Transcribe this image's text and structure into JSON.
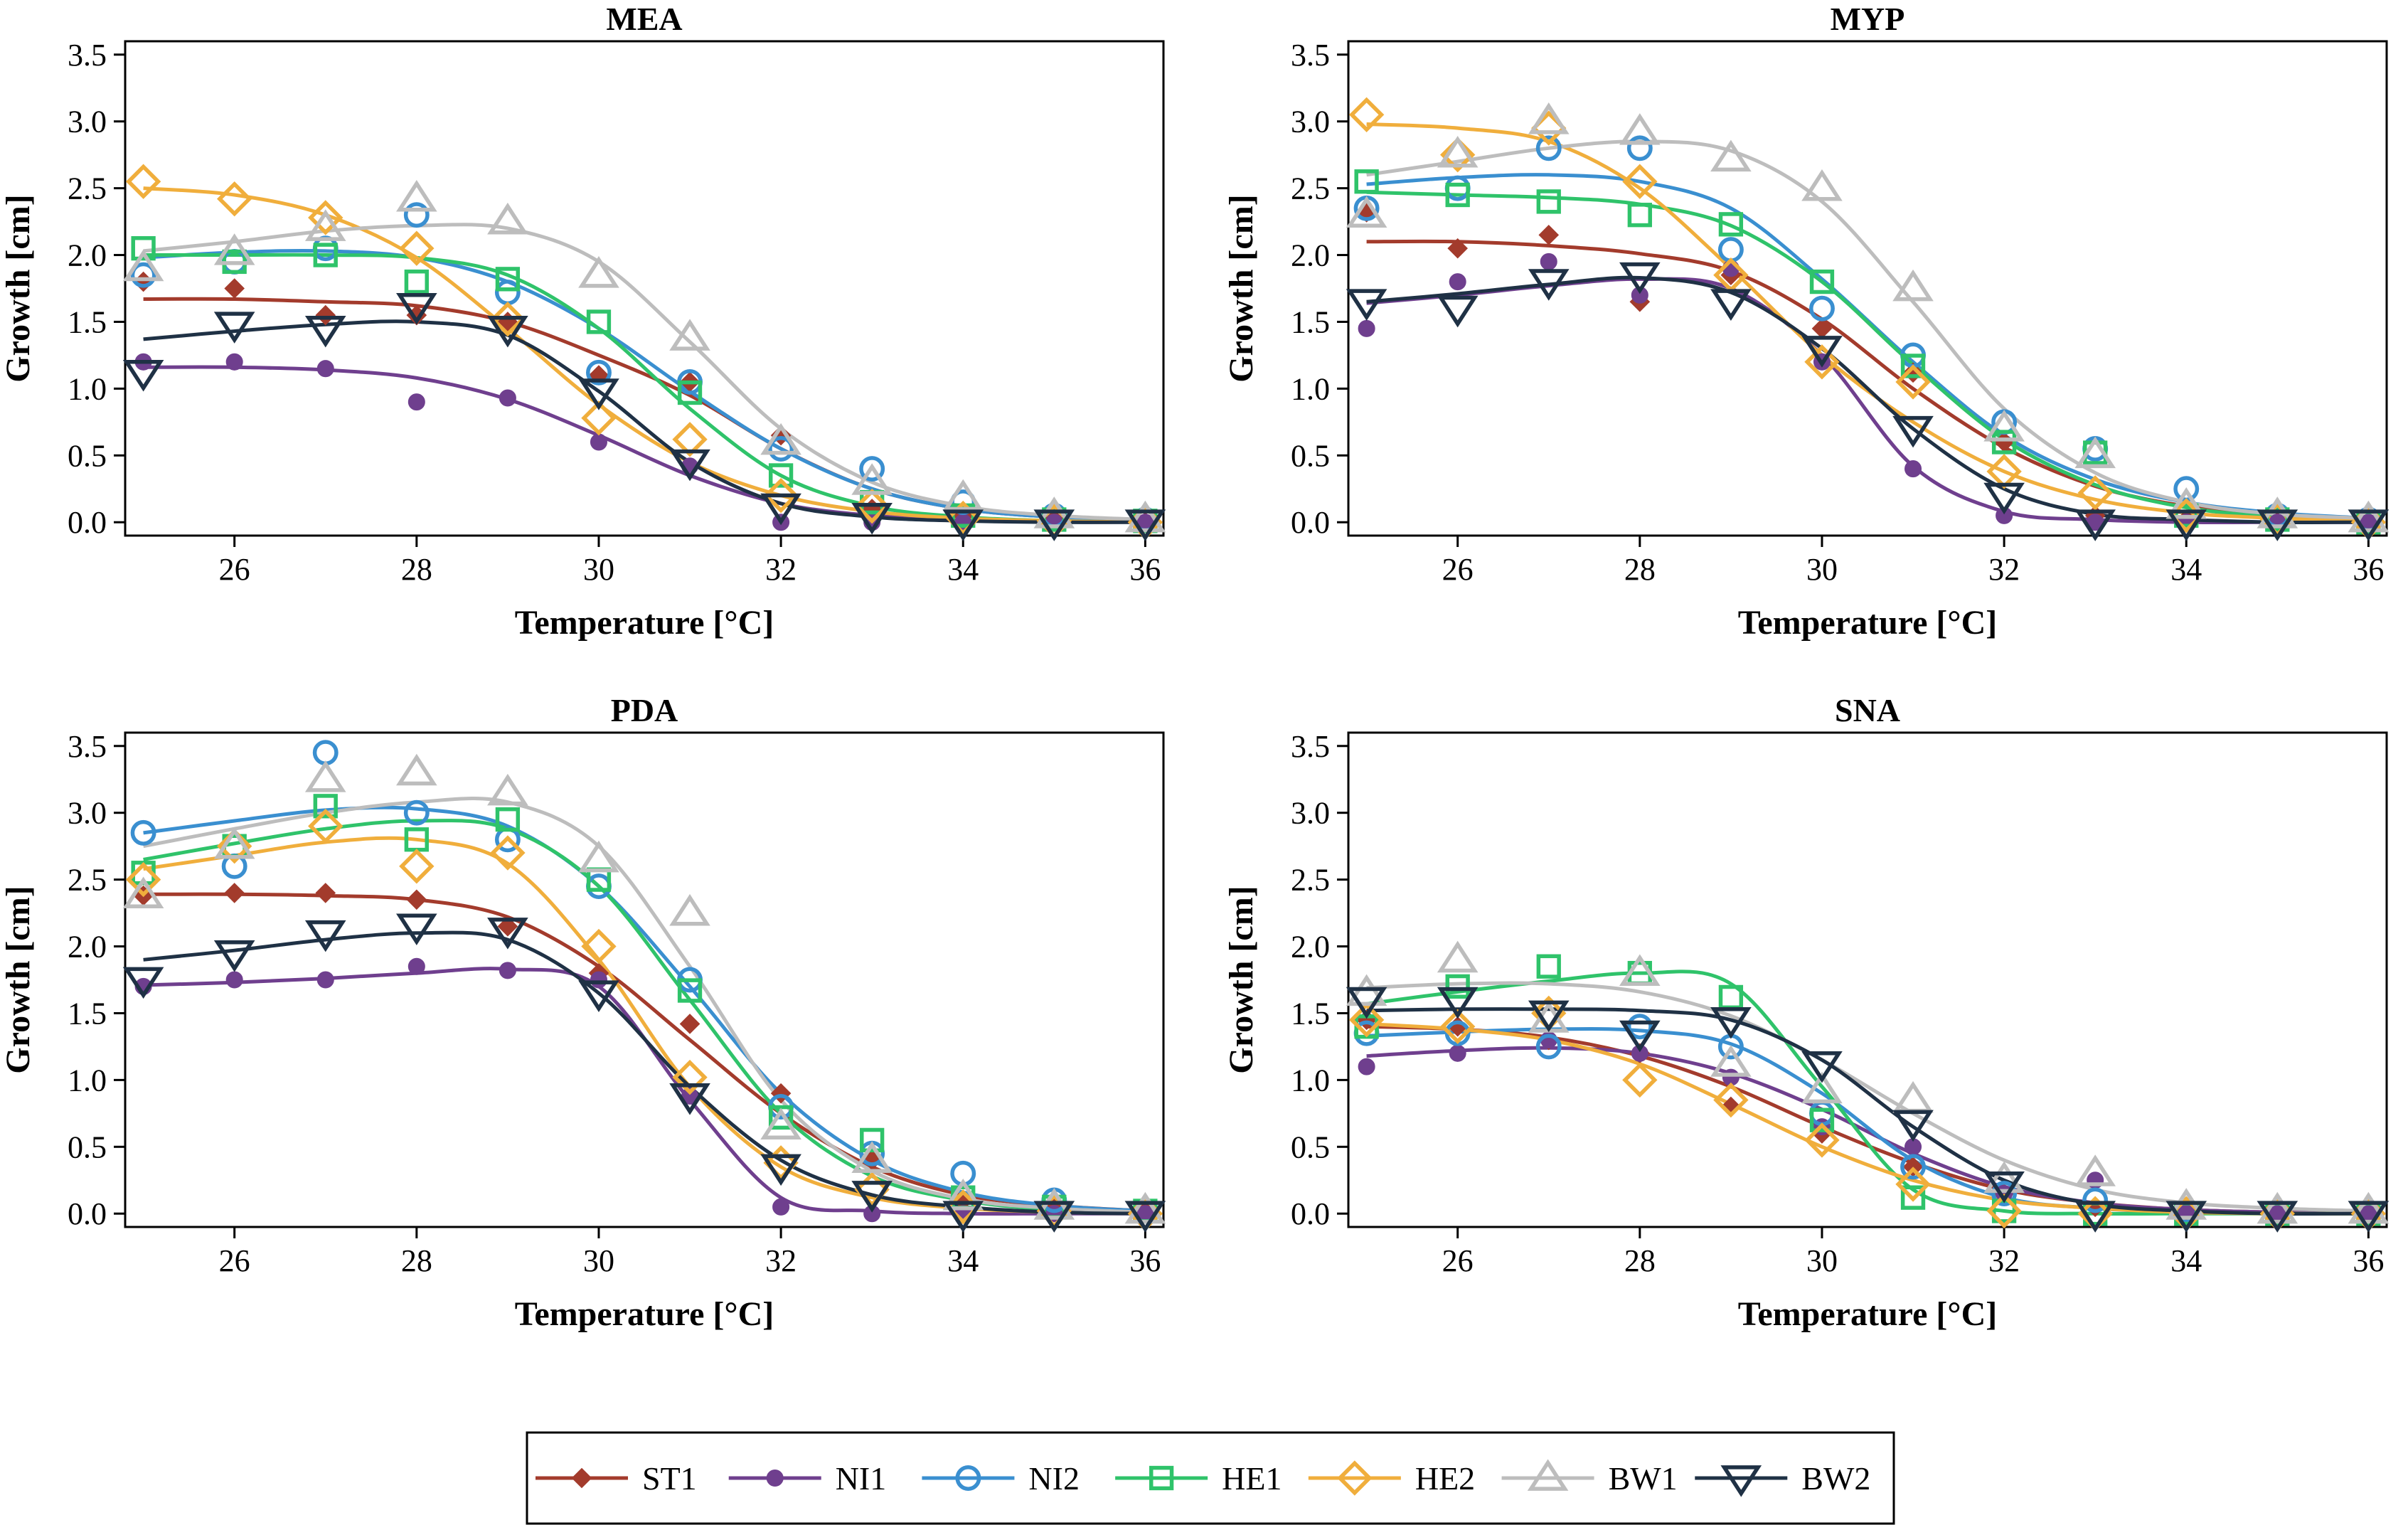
{
  "figure": {
    "legend_position": "bottom-center",
    "series_styles": [
      {
        "name": "ST1",
        "color": "#a33b2c",
        "marker": "diamond-filled"
      },
      {
        "name": "NI1",
        "color": "#6f3f8e",
        "marker": "circle-filled"
      },
      {
        "name": "NI2",
        "color": "#3a8fd0",
        "marker": "circle-open"
      },
      {
        "name": "HE1",
        "color": "#2fc36a",
        "marker": "square-open"
      },
      {
        "name": "HE2",
        "color": "#f0ae3c",
        "marker": "diamond-open"
      },
      {
        "name": "BW1",
        "color": "#bdbdbd",
        "marker": "triangle-up-open"
      },
      {
        "name": "BW2",
        "color": "#1f3145",
        "marker": "triangle-down-open"
      }
    ]
  },
  "chart_data": [
    {
      "type": "scatter",
      "title": "MEA",
      "xlabel": "Temperature [°C]",
      "ylabel": "Growth [cm]",
      "xlim": [
        24.8,
        36.2
      ],
      "ylim": [
        -0.1,
        3.6
      ],
      "xticks": [
        "26",
        "28",
        "30",
        "32",
        "34",
        "36"
      ],
      "yticks": [
        "0.0",
        "0.5",
        "1.0",
        "1.5",
        "2.0",
        "2.5",
        "3.0",
        "3.5"
      ],
      "x": [
        25,
        26,
        27,
        28,
        29,
        30,
        31,
        32,
        33,
        34,
        35,
        36
      ],
      "series": [
        {
          "name": "ST1",
          "values": [
            1.8,
            1.75,
            1.55,
            1.55,
            1.5,
            1.1,
            1.05,
            0.65,
            0.1,
            0.05,
            0.02,
            0.0
          ],
          "fit": [
            1.67,
            1.67,
            1.65,
            1.62,
            1.5,
            1.25,
            0.95,
            0.55,
            0.25,
            0.1,
            0.04,
            0.02
          ]
        },
        {
          "name": "NI1",
          "values": [
            1.2,
            1.2,
            1.15,
            0.9,
            0.93,
            0.6,
            0.42,
            0.0,
            0.0,
            0.0,
            0.0,
            0.0
          ],
          "fit": [
            1.16,
            1.16,
            1.14,
            1.08,
            0.92,
            0.65,
            0.35,
            0.14,
            0.05,
            0.02,
            0.01,
            0.0
          ]
        },
        {
          "name": "NI2",
          "values": [
            1.85,
            1.95,
            2.05,
            2.3,
            1.72,
            1.12,
            1.05,
            0.55,
            0.4,
            0.15,
            0.05,
            0.02
          ],
          "fit": [
            1.98,
            2.02,
            2.03,
            1.98,
            1.8,
            1.45,
            0.98,
            0.55,
            0.25,
            0.1,
            0.04,
            0.02
          ]
        },
        {
          "name": "HE1",
          "values": [
            2.05,
            1.95,
            2.0,
            1.8,
            1.82,
            1.5,
            0.97,
            0.35,
            0.15,
            0.05,
            0.02,
            0.01
          ],
          "fit": [
            2.0,
            2.0,
            2.0,
            1.98,
            1.85,
            1.45,
            0.85,
            0.35,
            0.12,
            0.04,
            0.01,
            0.0
          ]
        },
        {
          "name": "HE2",
          "values": [
            2.55,
            2.42,
            2.28,
            2.05,
            1.52,
            0.78,
            0.62,
            0.2,
            0.12,
            0.03,
            0.01,
            0.0
          ],
          "fit": [
            2.5,
            2.45,
            2.3,
            1.98,
            1.45,
            0.88,
            0.45,
            0.2,
            0.08,
            0.03,
            0.01,
            0.0
          ]
        },
        {
          "name": "BW1",
          "values": [
            1.9,
            2.02,
            2.2,
            2.42,
            2.25,
            1.85,
            1.38,
            0.6,
            0.3,
            0.18,
            0.05,
            0.02
          ],
          "fit": [
            2.03,
            2.1,
            2.18,
            2.22,
            2.2,
            1.95,
            1.35,
            0.7,
            0.3,
            0.12,
            0.05,
            0.02
          ]
        },
        {
          "name": "BW2",
          "values": [
            1.12,
            1.48,
            1.45,
            1.62,
            1.45,
            0.98,
            0.45,
            0.12,
            0.05,
            0.0,
            0.0,
            0.0
          ],
          "fit": [
            1.37,
            1.43,
            1.48,
            1.5,
            1.4,
            0.98,
            0.45,
            0.14,
            0.04,
            0.01,
            0.0,
            0.0
          ]
        }
      ]
    },
    {
      "type": "scatter",
      "title": "MYP",
      "xlabel": "Temperature [°C]",
      "ylabel": "Growth [cm]",
      "xlim": [
        24.8,
        36.2
      ],
      "ylim": [
        -0.1,
        3.6
      ],
      "xticks": [
        "26",
        "28",
        "30",
        "32",
        "34",
        "36"
      ],
      "yticks": [
        "0.0",
        "0.5",
        "1.0",
        "1.5",
        "2.0",
        "2.5",
        "3.0",
        "3.5"
      ],
      "x": [
        25,
        26,
        27,
        28,
        29,
        30,
        31,
        32,
        33,
        34,
        35,
        36
      ],
      "series": [
        {
          "name": "ST1",
          "values": [
            2.32,
            2.05,
            2.15,
            1.65,
            1.85,
            1.45,
            1.12,
            0.6,
            0.05,
            0.02,
            0.0,
            0.0
          ],
          "fit": [
            2.1,
            2.1,
            2.07,
            2.01,
            1.88,
            1.52,
            1.0,
            0.56,
            0.27,
            0.12,
            0.05,
            0.02
          ]
        },
        {
          "name": "NI1",
          "values": [
            1.45,
            1.8,
            1.95,
            1.7,
            1.9,
            1.2,
            0.4,
            0.05,
            0.0,
            0.0,
            0.0,
            0.0
          ],
          "fit": [
            1.64,
            1.7,
            1.77,
            1.82,
            1.75,
            1.25,
            0.42,
            0.08,
            0.02,
            0.0,
            0.0,
            0.0
          ]
        },
        {
          "name": "NI2",
          "values": [
            2.35,
            2.5,
            2.8,
            2.8,
            2.04,
            1.6,
            1.25,
            0.75,
            0.55,
            0.25,
            0.05,
            0.02
          ],
          "fit": [
            2.53,
            2.58,
            2.6,
            2.55,
            2.35,
            1.82,
            1.2,
            0.65,
            0.32,
            0.15,
            0.07,
            0.03
          ]
        },
        {
          "name": "HE1",
          "values": [
            2.55,
            2.45,
            2.4,
            2.3,
            2.23,
            1.8,
            1.17,
            0.6,
            0.52,
            0.05,
            0.02,
            0.0
          ],
          "fit": [
            2.47,
            2.45,
            2.43,
            2.38,
            2.22,
            1.8,
            1.18,
            0.62,
            0.28,
            0.11,
            0.04,
            0.02
          ]
        },
        {
          "name": "HE2",
          "values": [
            3.05,
            2.75,
            2.95,
            2.55,
            1.85,
            1.2,
            1.05,
            0.38,
            0.22,
            0.05,
            0.02,
            0.0
          ],
          "fit": [
            2.98,
            2.95,
            2.85,
            2.5,
            1.9,
            1.25,
            0.75,
            0.38,
            0.17,
            0.07,
            0.03,
            0.01
          ]
        },
        {
          "name": "BW1",
          "values": [
            2.3,
            2.75,
            3.0,
            2.92,
            2.72,
            2.5,
            1.75,
            0.7,
            0.5,
            0.12,
            0.05,
            0.02
          ],
          "fit": [
            2.6,
            2.7,
            2.8,
            2.85,
            2.78,
            2.4,
            1.65,
            0.85,
            0.37,
            0.15,
            0.06,
            0.03
          ]
        },
        {
          "name": "BW2",
          "values": [
            1.65,
            1.6,
            1.8,
            1.85,
            1.65,
            1.3,
            0.7,
            0.2,
            0.0,
            0.0,
            0.0,
            0.0
          ],
          "fit": [
            1.65,
            1.71,
            1.78,
            1.83,
            1.72,
            1.3,
            0.7,
            0.25,
            0.06,
            0.02,
            0.0,
            0.0
          ]
        }
      ]
    },
    {
      "type": "scatter",
      "title": "PDA",
      "xlabel": "Temperature [°C]",
      "ylabel": "Growth [cm]",
      "xlim": [
        24.8,
        36.2
      ],
      "ylim": [
        -0.1,
        3.6
      ],
      "xticks": [
        "26",
        "28",
        "30",
        "32",
        "34",
        "36"
      ],
      "yticks": [
        "0.0",
        "0.5",
        "1.0",
        "1.5",
        "2.0",
        "2.5",
        "3.0",
        "3.5"
      ],
      "x": [
        25,
        26,
        27,
        28,
        29,
        30,
        31,
        32,
        33,
        34,
        35,
        36
      ],
      "series": [
        {
          "name": "ST1",
          "values": [
            2.38,
            2.4,
            2.4,
            2.35,
            2.15,
            1.8,
            1.42,
            0.9,
            0.4,
            0.1,
            0.05,
            0.02
          ],
          "fit": [
            2.39,
            2.39,
            2.38,
            2.35,
            2.22,
            1.85,
            1.3,
            0.75,
            0.35,
            0.14,
            0.06,
            0.02
          ]
        },
        {
          "name": "NI1",
          "values": [
            1.7,
            1.75,
            1.75,
            1.85,
            1.82,
            1.75,
            0.88,
            0.05,
            0.0,
            0.0,
            0.0,
            0.0
          ],
          "fit": [
            1.71,
            1.73,
            1.76,
            1.8,
            1.83,
            1.7,
            0.85,
            0.12,
            0.02,
            0.0,
            0.0,
            0.0
          ]
        },
        {
          "name": "NI2",
          "values": [
            2.85,
            2.6,
            3.45,
            3.0,
            2.8,
            2.45,
            1.75,
            0.8,
            0.45,
            0.3,
            0.1,
            0.02
          ],
          "fit": [
            2.85,
            2.94,
            3.02,
            3.03,
            2.9,
            2.45,
            1.7,
            0.9,
            0.4,
            0.16,
            0.06,
            0.02
          ]
        },
        {
          "name": "HE1",
          "values": [
            2.55,
            2.75,
            3.05,
            2.8,
            2.95,
            2.5,
            1.67,
            0.72,
            0.55,
            0.12,
            0.05,
            0.02
          ],
          "fit": [
            2.65,
            2.77,
            2.88,
            2.94,
            2.88,
            2.45,
            1.6,
            0.75,
            0.28,
            0.1,
            0.03,
            0.01
          ]
        },
        {
          "name": "HE2",
          "values": [
            2.5,
            2.75,
            2.9,
            2.6,
            2.7,
            2.0,
            1.02,
            0.38,
            0.18,
            0.05,
            0.02,
            0.0
          ],
          "fit": [
            2.58,
            2.68,
            2.78,
            2.8,
            2.62,
            1.9,
            0.95,
            0.35,
            0.12,
            0.04,
            0.01,
            0.0
          ]
        },
        {
          "name": "BW1",
          "values": [
            2.38,
            2.75,
            3.25,
            3.3,
            3.15,
            2.65,
            2.25,
            0.65,
            0.4,
            0.12,
            0.05,
            0.02
          ],
          "fit": [
            2.75,
            2.88,
            3.0,
            3.08,
            3.08,
            2.75,
            1.85,
            0.85,
            0.32,
            0.11,
            0.04,
            0.01
          ]
        },
        {
          "name": "BW2",
          "values": [
            1.75,
            1.95,
            2.1,
            2.15,
            2.12,
            1.65,
            0.88,
            0.35,
            0.15,
            0.0,
            0.0,
            0.0
          ],
          "fit": [
            1.9,
            1.97,
            2.05,
            2.1,
            2.05,
            1.65,
            0.95,
            0.4,
            0.14,
            0.05,
            0.01,
            0.0
          ]
        }
      ]
    },
    {
      "type": "scatter",
      "title": "SNA",
      "xlabel": "Temperature [°C]",
      "ylabel": "Growth [cm]",
      "xlim": [
        24.8,
        36.2
      ],
      "ylim": [
        -0.1,
        3.6
      ],
      "xticks": [
        "26",
        "28",
        "30",
        "32",
        "34",
        "36"
      ],
      "yticks": [
        "0.0",
        "0.5",
        "1.0",
        "1.5",
        "2.0",
        "2.5",
        "3.0",
        "3.5"
      ],
      "x": [
        25,
        26,
        27,
        28,
        29,
        30,
        31,
        32,
        33,
        34,
        35,
        36
      ],
      "series": [
        {
          "name": "ST1",
          "values": [
            1.45,
            1.4,
            1.3,
            1.2,
            0.8,
            0.6,
            0.35,
            0.15,
            0.05,
            0.02,
            0.0,
            0.0
          ],
          "fit": [
            1.4,
            1.38,
            1.32,
            1.18,
            0.95,
            0.65,
            0.38,
            0.18,
            0.08,
            0.03,
            0.01,
            0.0
          ]
        },
        {
          "name": "NI1",
          "values": [
            1.1,
            1.2,
            1.3,
            1.2,
            1.02,
            0.65,
            0.5,
            0.15,
            0.25,
            0.02,
            0.0,
            0.0
          ],
          "fit": [
            1.18,
            1.22,
            1.24,
            1.2,
            1.05,
            0.78,
            0.45,
            0.2,
            0.08,
            0.03,
            0.01,
            0.0
          ]
        },
        {
          "name": "NI2",
          "values": [
            1.35,
            1.35,
            1.25,
            1.4,
            1.25,
            0.75,
            0.35,
            0.15,
            0.1,
            0.02,
            0.0,
            0.0
          ],
          "fit": [
            1.33,
            1.36,
            1.38,
            1.37,
            1.27,
            0.9,
            0.4,
            0.12,
            0.04,
            0.01,
            0.0,
            0.0
          ]
        },
        {
          "name": "HE1",
          "values": [
            1.4,
            1.7,
            1.85,
            1.8,
            1.62,
            0.7,
            0.12,
            0.02,
            0.0,
            0.0,
            0.0,
            0.0
          ],
          "fit": [
            1.57,
            1.66,
            1.74,
            1.8,
            1.72,
            0.95,
            0.18,
            0.02,
            0.0,
            0.0,
            0.0,
            0.0
          ]
        },
        {
          "name": "HE2",
          "values": [
            1.45,
            1.4,
            1.5,
            1.0,
            0.85,
            0.55,
            0.22,
            0.02,
            0.0,
            0.0,
            0.0,
            0.0
          ],
          "fit": [
            1.42,
            1.38,
            1.3,
            1.12,
            0.82,
            0.5,
            0.25,
            0.1,
            0.04,
            0.01,
            0.0,
            0.0
          ]
        },
        {
          "name": "BW1",
          "values": [
            1.65,
            1.9,
            1.45,
            1.8,
            1.12,
            0.92,
            0.85,
            0.25,
            0.3,
            0.05,
            0.02,
            0.02
          ],
          "fit": [
            1.69,
            1.72,
            1.72,
            1.66,
            1.48,
            1.15,
            0.75,
            0.4,
            0.18,
            0.08,
            0.04,
            0.02
          ]
        },
        {
          "name": "BW2",
          "values": [
            1.6,
            1.6,
            1.5,
            1.35,
            1.45,
            1.12,
            0.68,
            0.22,
            0.0,
            0.0,
            0.0,
            0.0
          ],
          "fit": [
            1.52,
            1.53,
            1.53,
            1.52,
            1.45,
            1.15,
            0.65,
            0.25,
            0.07,
            0.02,
            0.0,
            0.0
          ]
        }
      ]
    }
  ]
}
